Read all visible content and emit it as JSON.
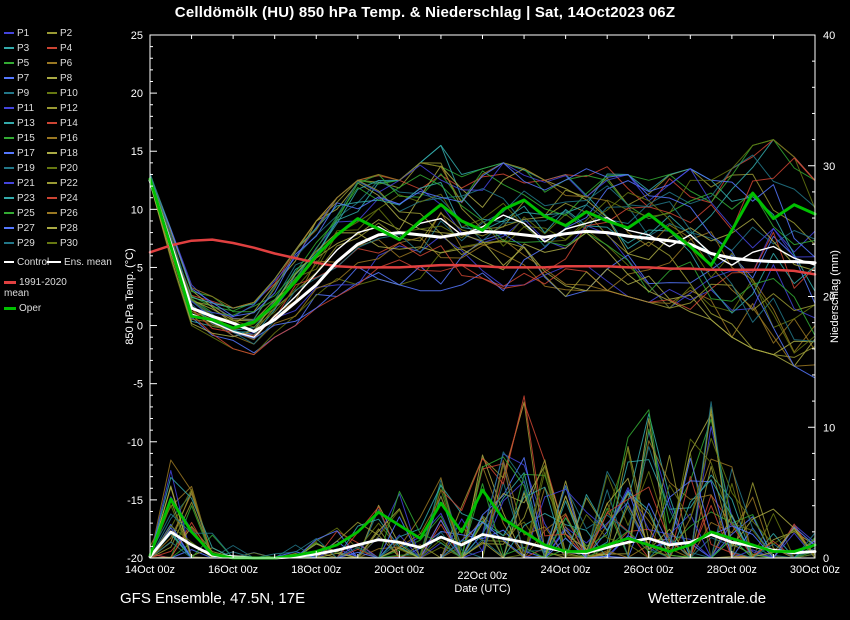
{
  "title": "Celldömölk  (HU)  850 hPa Temp. & Niederschlag | Sat, 14Oct2023 06Z",
  "footer": {
    "left": "GFS Ensemble, 47.5N, 17E",
    "right": "Wetterzentrale.de"
  },
  "legend": {
    "control_label": "Control",
    "ens_mean_label": "Ens. mean",
    "climate_label": "1991-2020\nmean",
    "oper_label": "Oper"
  },
  "chart_data": {
    "type": "line",
    "title": "Celldömölk (HU) 850 hPa Temp. & Niederschlag | Sat, 14Oct2023 06Z",
    "xlabel": "Date (UTC)",
    "ylabel_left": "850 hPa Temp. (°C)",
    "ylabel_right": "Niederschlag (mm)",
    "ylim_left": [
      -20,
      25
    ],
    "ylim_right": [
      0,
      40
    ],
    "grid": false,
    "legend_position": "top-left",
    "x_tick_labels": [
      "14Oct 00z",
      "16Oct 00z",
      "18Oct 00z",
      "20Oct 00z",
      "22Oct 00z",
      "24Oct 00z",
      "26Oct 00z",
      "28Oct 00z",
      "30Oct 00z"
    ],
    "y_ticks_left": [
      -20,
      -15,
      -10,
      -5,
      0,
      5,
      10,
      15,
      20,
      25
    ],
    "y_ticks_right": [
      0,
      10,
      20,
      30,
      40
    ],
    "time_steps": 33,
    "series": {
      "ens_mean_temp": [
        12.5,
        7.0,
        1.5,
        0.8,
        0.2,
        -0.5,
        0.5,
        2.0,
        3.5,
        5.5,
        7.0,
        7.8,
        8.0,
        7.8,
        7.6,
        7.9,
        8.1,
        8.0,
        7.8,
        7.6,
        7.9,
        8.1,
        8.0,
        7.7,
        7.5,
        7.3,
        7.0,
        6.2,
        5.8,
        5.6,
        5.5,
        5.5,
        5.4
      ],
      "control_temp": [
        12.7,
        6.5,
        1.0,
        0.3,
        -0.5,
        -1.0,
        0.8,
        2.5,
        4.5,
        6.5,
        8.0,
        8.5,
        7.5,
        8.8,
        9.2,
        7.8,
        8.5,
        9.5,
        8.8,
        7.2,
        8.3,
        8.8,
        9.3,
        8.2,
        7.8,
        6.8,
        7.8,
        6.2,
        5.2,
        6.3,
        6.8,
        5.8,
        5.2
      ],
      "oper_temp": [
        12.6,
        6.8,
        0.8,
        0.5,
        -0.2,
        0.3,
        1.8,
        3.8,
        6.0,
        7.8,
        9.2,
        8.3,
        7.4,
        9.0,
        10.4,
        9.0,
        8.2,
        10.0,
        10.8,
        9.4,
        8.6,
        9.8,
        9.0,
        8.4,
        9.6,
        8.2,
        6.8,
        5.2,
        8.2,
        11.4,
        9.2,
        10.4,
        9.6
      ],
      "climate_mean_temp": [
        6.3,
        6.9,
        7.3,
        7.4,
        7.1,
        6.7,
        6.2,
        5.8,
        5.4,
        5.1,
        5.0,
        5.0,
        5.0,
        5.1,
        5.2,
        5.2,
        5.1,
        5.0,
        5.0,
        5.0,
        5.1,
        5.1,
        5.1,
        5.0,
        5.0,
        4.9,
        4.9,
        4.8,
        4.8,
        4.8,
        4.8,
        4.7,
        4.4
      ],
      "ens_mean_precip": [
        0.1,
        2.0,
        1.0,
        0.2,
        0.1,
        0,
        0,
        0.1,
        0.3,
        0.6,
        1.0,
        1.4,
        1.2,
        0.8,
        1.6,
        1.0,
        1.8,
        1.5,
        1.2,
        0.8,
        0.5,
        0.4,
        0.8,
        1.2,
        1.5,
        1.0,
        1.2,
        1.8,
        1.2,
        0.9,
        0.6,
        0.4,
        0.5
      ],
      "oper_precip": [
        0.2,
        4.5,
        2.0,
        0.3,
        0,
        0,
        0,
        0.2,
        0.5,
        1.0,
        2.0,
        3.5,
        2.5,
        1.5,
        4.2,
        2.0,
        5.2,
        3.0,
        2.0,
        1.0,
        0.5,
        0.5,
        1.0,
        1.5,
        1.0,
        0.5,
        1.0,
        2.0,
        1.5,
        1.0,
        0.5,
        0.5,
        1.0
      ]
    },
    "ensemble_envelope": {
      "temp_min": [
        12.0,
        5.5,
        0.0,
        -1.0,
        -2.0,
        -2.5,
        -1.0,
        0.0,
        1.5,
        2.5,
        3.5,
        4.0,
        3.5,
        3.0,
        3.0,
        3.5,
        3.0,
        3.0,
        3.5,
        3.0,
        2.5,
        3.0,
        3.0,
        2.5,
        2.0,
        1.5,
        1.0,
        0.5,
        -1.0,
        -2.0,
        -2.5,
        -3.5,
        -4.5
      ],
      "temp_max": [
        13.2,
        8.5,
        3.5,
        2.5,
        1.5,
        2.0,
        4.0,
        6.5,
        9.0,
        11.0,
        12.5,
        13.0,
        12.5,
        14.0,
        15.5,
        13.0,
        13.5,
        14.0,
        13.5,
        12.5,
        13.0,
        13.5,
        14.0,
        13.0,
        12.5,
        13.0,
        13.5,
        12.5,
        13.5,
        15.5,
        16.0,
        14.5,
        12.5
      ],
      "precip_max": [
        1,
        8,
        6,
        2,
        1,
        0.5,
        0.5,
        1,
        1.5,
        2.5,
        3.5,
        4.5,
        6,
        5,
        8,
        6,
        8,
        10,
        13,
        8,
        6,
        5,
        8,
        10,
        12,
        8,
        10,
        13,
        8,
        6,
        4,
        3,
        2
      ]
    },
    "members": [
      "P1",
      "P2",
      "P3",
      "P4",
      "P5",
      "P6",
      "P7",
      "P8",
      "P9",
      "P10",
      "P11",
      "P12",
      "P13",
      "P14",
      "P15",
      "P16",
      "P17",
      "P18",
      "P19",
      "P20",
      "P21",
      "P22",
      "P23",
      "P24",
      "P25",
      "P26",
      "P27",
      "P28",
      "P29",
      "P30"
    ],
    "member_palette": [
      "#4444dd",
      "#999933",
      "#33aaaa",
      "#cc4433",
      "#33aa33",
      "#997722",
      "#5577ff",
      "#aaaa44",
      "#227788",
      "#667711"
    ],
    "colors": {
      "control": "#ffffff",
      "ens_mean": "#ffffff",
      "climate": "#e04040",
      "oper": "#00c000",
      "axis": "#ffffff",
      "background": "#000000"
    }
  }
}
